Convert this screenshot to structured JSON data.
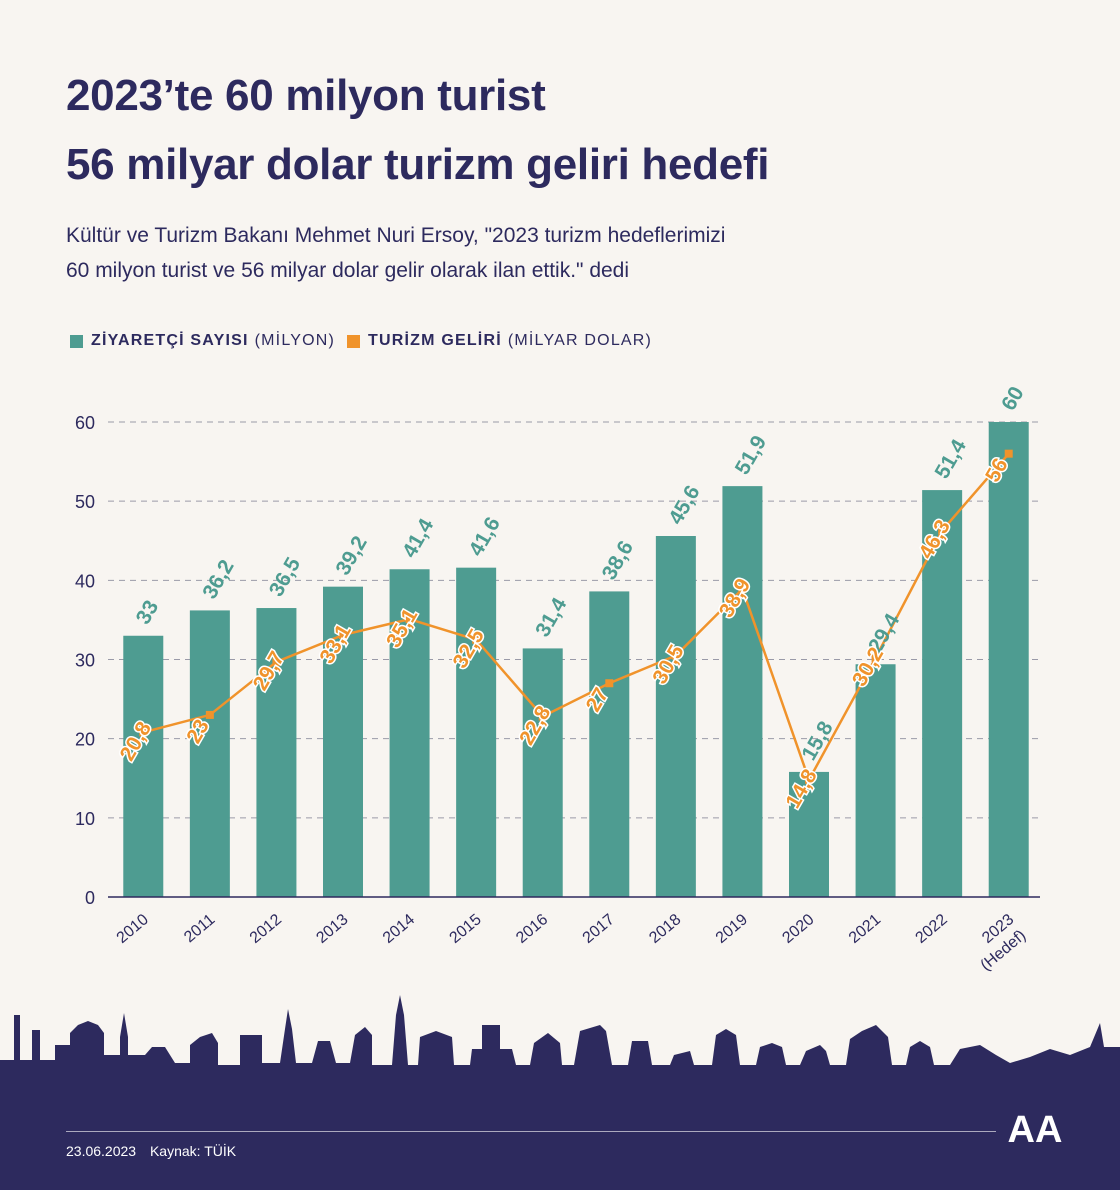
{
  "header": {
    "title_line1": "2023’te 60 milyon turist",
    "title_line2": "56 milyar dolar turizm geliri hedefi",
    "subtitle_line1": "Kültür ve Turizm Bakanı Mehmet Nuri Ersoy, \"2023 turizm hedeflerimizi",
    "subtitle_line2": "60 milyon turist ve 56 milyar dolar gelir olarak ilan ettik.\" dedi"
  },
  "legend": {
    "visitors_label": "ZİYARETÇİ SAYISI",
    "visitors_unit": "(MİLYON)",
    "revenue_label": "TURİZM GELİRİ",
    "revenue_unit": "(MİLYAR DOLAR)"
  },
  "colors": {
    "bar": "#4e9c91",
    "line": "#f0932b",
    "title": "#2d2a5e",
    "background": "#f8f5f1",
    "footer": "#2d2a5e"
  },
  "chart_data": {
    "type": "bar",
    "categories": [
      "2010",
      "2011",
      "2012",
      "2013",
      "2014",
      "2015",
      "2016",
      "2017",
      "2018",
      "2019",
      "2020",
      "2021",
      "2022",
      "2023"
    ],
    "category_sublabels": [
      "",
      "",
      "",
      "",
      "",
      "",
      "",
      "",
      "",
      "",
      "",
      "",
      "",
      "(Hedef)"
    ],
    "series": [
      {
        "name": "ZİYARETÇİ SAYISI (MİLYON)",
        "type": "bar",
        "values": [
          33,
          36.2,
          36.5,
          39.2,
          41.4,
          41.6,
          31.4,
          38.6,
          45.6,
          51.9,
          15.8,
          29.4,
          51.4,
          60
        ],
        "labels": [
          "33",
          "36,2",
          "36,5",
          "39,2",
          "41,4",
          "41,6",
          "31,4",
          "38,6",
          "45,6",
          "51,9",
          "15,8",
          "29,4",
          "51,4",
          "60"
        ]
      },
      {
        "name": "TURİZM GELİRİ (MİLYAR DOLAR)",
        "type": "line",
        "values": [
          20.8,
          23,
          29.7,
          33.1,
          35.1,
          32.5,
          22.8,
          27,
          30.5,
          38.9,
          14.8,
          30.2,
          46.3,
          56
        ],
        "labels": [
          "20,8",
          "23",
          "29,7",
          "33,1",
          "35,1",
          "32,5",
          "22,8",
          "27",
          "30,5",
          "38,9",
          "14,8",
          "30,2",
          "46,3",
          "56"
        ]
      }
    ],
    "yticks": [
      "0",
      "10",
      "20",
      "30",
      "40",
      "50",
      "60"
    ],
    "ylim": [
      0,
      60
    ],
    "grid": true,
    "legend_position": "top-left"
  },
  "footer": {
    "date": "23.06.2023",
    "source": "Kaynak: TÜİK",
    "logo_text": "AA"
  }
}
